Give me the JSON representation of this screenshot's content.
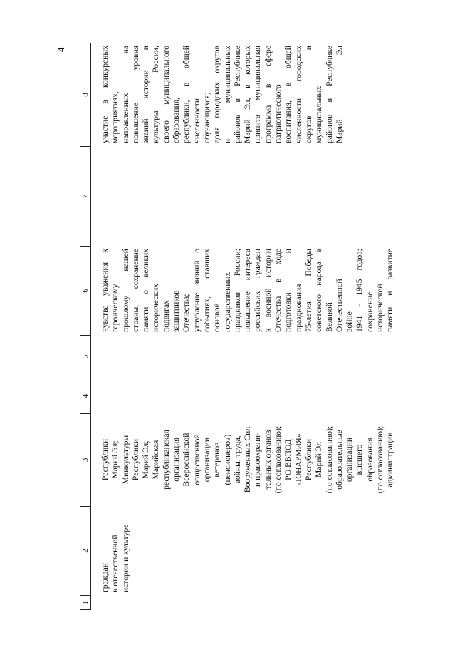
{
  "page_number": "4",
  "table": {
    "header": [
      "1",
      "2",
      "3",
      "4",
      "5",
      "6",
      "7",
      "8"
    ],
    "rows": [
      [
        null,
        [
          "граждан",
          "к отечественной",
          "истории и культуре"
        ],
        [
          "Республики",
          "Марий Эл;",
          "Минкультуры",
          "Республики",
          "Марий Эл;",
          "Марийская",
          "республиканская",
          "организация",
          "Всероссийской",
          "общественной",
          "организации",
          "ветеранов",
          "(пенсионеров)",
          "войны, труда,",
          "Вооруженных Сил",
          "и правоохрани-",
          "тельных органов",
          "(по согласованию);",
          "РО ВВПОД",
          "«ЮНАРМИЯ»",
          "Республики",
          "Марий Эл",
          "(по согласованию);",
          "образовательные",
          "организации",
          "высшего",
          "образования",
          "(по согласованию);",
          "администрации"
        ],
        null,
        null,
        [
          "чувства уважения к",
          "героическому",
          "прошлому нашей",
          "страны, сохранение",
          "памяти о великих",
          "исторических",
          "подвигах",
          "защитников",
          "Отечества;",
          "углубление знаний о",
          "событиях, ставших",
          "основой",
          "государственных",
          "праздников России;",
          "повышение интереса",
          "российских граждан",
          "к военной истории",
          "Отечества в ходе",
          "подготовки и",
          "празднования",
          "75-летия Победы",
          "советского народа в",
          "Великой",
          "Отечественной",
          "войне",
          "1941 - 1945 годов;",
          "сохранение",
          "исторической",
          "памяти и развитие"
        ],
        null,
        [
          "участие в конкурсных",
          "мероприятиях,",
          "направленных на",
          "повышение уровня",
          "знаний истории и",
          "культуры России,",
          "своего муниципального",
          "образования,",
          "республики, в общей",
          "численности",
          "обучающихся;",
          "доля городских округов",
          "и муниципальных",
          "районов в Республике",
          "Марий Эл, в которых",
          "принята муниципальная",
          "программа в сфере",
          "патриотического",
          "воспитания, в общей",
          "численности городских",
          "округов и",
          "муниципальных",
          "районов в Республике",
          "Марий Эл"
        ]
      ]
    ]
  }
}
